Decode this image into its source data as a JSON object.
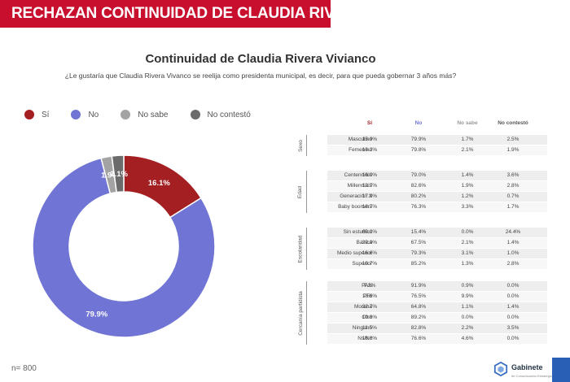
{
  "banner": {
    "title": "RECHAZAN CONTINUIDAD DE CLAUDIA RIVERA"
  },
  "heading": {
    "title": "Continuidad de Claudia Rivera Vivianco",
    "question": "¿Le gustaría que Claudia Rivera Vivanco se reelija como presidenta municipal, es decir, para que pueda gobernar 3 años más?"
  },
  "colors": {
    "si": "#a31f22",
    "no": "#6f74d5",
    "no_sabe": "#a3a3a3",
    "no_contesto": "#6b6b6b",
    "banner": "#c8102e"
  },
  "chart_data": {
    "type": "pie",
    "donut": true,
    "legend_position": "top-left",
    "slices": [
      {
        "label": "Sí",
        "value": 16.1,
        "display": "16.1%"
      },
      {
        "label": "No",
        "value": 79.9,
        "display": "79.9%"
      },
      {
        "label": "No sabe",
        "value": 1.9,
        "display": "1.9%"
      },
      {
        "label": "No contestó",
        "value": 2.1,
        "display": "2.1%"
      }
    ]
  },
  "sample": "n= 800",
  "table": {
    "columns": [
      "Sí",
      "No",
      "No sabe",
      "No contestó"
    ],
    "groups": [
      {
        "name": "Sexo",
        "rows": [
          {
            "label": "Masculino",
            "values": [
              "15.9%",
              "79.9%",
              "1.7%",
              "2.5%"
            ]
          },
          {
            "label": "Femenino",
            "values": [
              "16.2%",
              "79.8%",
              "2.1%",
              "1.9%"
            ]
          }
        ]
      },
      {
        "name": "Edad",
        "rows": [
          {
            "label": "Centennials",
            "values": [
              "16.0%",
              "79.0%",
              "1.4%",
              "3.6%"
            ]
          },
          {
            "label": "Millennials",
            "values": [
              "12.7%",
              "82.6%",
              "1.9%",
              "2.8%"
            ]
          },
          {
            "label": "Generación X",
            "values": [
              "17.9%",
              "80.2%",
              "1.2%",
              "0.7%"
            ]
          },
          {
            "label": "Baby boomers",
            "values": [
              "18.7%",
              "76.3%",
              "3.3%",
              "1.7%"
            ]
          }
        ]
      },
      {
        "name": "Escolaridad",
        "rows": [
          {
            "label": "Sin estudios",
            "values": [
              "60.2%",
              "15.4%",
              "0.0%",
              "24.4%"
            ]
          },
          {
            "label": "Básica",
            "values": [
              "29.0%",
              "67.5%",
              "2.1%",
              "1.4%"
            ]
          },
          {
            "label": "Medio superior",
            "values": [
              "16.6%",
              "79.3%",
              "3.1%",
              "1.0%"
            ]
          },
          {
            "label": "Superior",
            "values": [
              "10.7%",
              "85.2%",
              "1.3%",
              "2.8%"
            ]
          }
        ]
      },
      {
        "name": "Cercanía partidista",
        "rows": [
          {
            "label": "PAN",
            "values": [
              "7.2%",
              "91.9%",
              "0.9%",
              "0.0%"
            ]
          },
          {
            "label": "PRI",
            "values": [
              "13.6%",
              "76.5%",
              "9.9%",
              "0.0%"
            ]
          },
          {
            "label": "Morena",
            "values": [
              "32.7%",
              "64.8%",
              "1.1%",
              "1.4%"
            ]
          },
          {
            "label": "Otro",
            "values": [
              "10.8%",
              "89.2%",
              "0.0%",
              "0.0%"
            ]
          },
          {
            "label": "Ninguno",
            "values": [
              "11.5%",
              "82.8%",
              "2.2%",
              "3.5%"
            ]
          },
          {
            "label": "Ns/Nc",
            "values": [
              "18.8%",
              "76.6%",
              "4.6%",
              "0.0%"
            ]
          }
        ]
      }
    ]
  },
  "logo": {
    "name": "Gabinete",
    "sub": "de Comunicación Estratégica",
    "icon": "hexagon-logo-icon"
  }
}
